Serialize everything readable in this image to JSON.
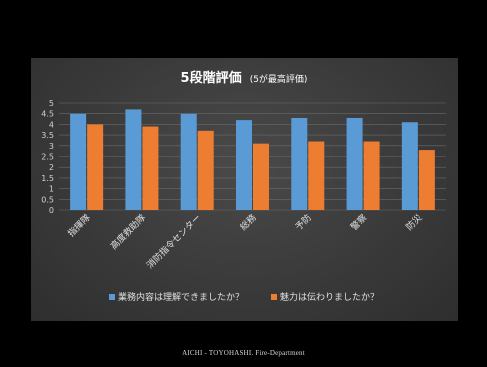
{
  "footer": "AICHI - TOYOHASHI. Fire-Department",
  "chart_data": {
    "type": "bar",
    "title_main": "5段階評価",
    "title_sub": "(5が最高評価)",
    "categories": [
      "指揮隊",
      "高度救助隊",
      "消防指令センター",
      "総務",
      "予防",
      "警察",
      "防災"
    ],
    "ylim": [
      0,
      5
    ],
    "yticks": [
      "0",
      "0.5",
      "1",
      "1.5",
      "2",
      "2.5",
      "3",
      "3.5",
      "4",
      "4.5",
      "5"
    ],
    "grid": true,
    "legend_position": "bottom",
    "series": [
      {
        "name": "業務内容は理解できましたか？",
        "color": "#5b9bd5",
        "values": [
          4.5,
          4.7,
          4.5,
          4.2,
          4.3,
          4.3,
          4.1
        ]
      },
      {
        "name": "魅力は伝わりましたか？",
        "color": "#ed7d31",
        "values": [
          4.0,
          3.9,
          3.7,
          3.1,
          3.2,
          3.2,
          2.8
        ]
      }
    ]
  }
}
